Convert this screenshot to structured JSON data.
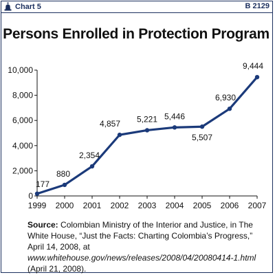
{
  "header": {
    "label": "Chart 5",
    "code": "B 2129",
    "icon": "liberty-bell-icon"
  },
  "chart_data": {
    "type": "line",
    "title": "Persons Enrolled in Protection Program",
    "xlabel": "",
    "ylabel": "",
    "categories": [
      "1999",
      "2000",
      "2001",
      "2002",
      "2003",
      "2004",
      "2005",
      "2006",
      "2007"
    ],
    "values": [
      177,
      880,
      2354,
      4857,
      5221,
      5446,
      5507,
      6930,
      9444
    ],
    "data_labels": [
      "177",
      "880",
      "2,354",
      "4,857",
      "5,221",
      "5,446",
      "5,507",
      "6,930",
      "9,444"
    ],
    "ylim": [
      0,
      10000
    ],
    "yticks": [
      0,
      2000,
      4000,
      6000,
      8000,
      10000
    ],
    "ytick_labels": [
      "0",
      "2,000",
      "4,000",
      "6,000",
      "8,000",
      "10,000"
    ],
    "grid": false,
    "line_color": "#1b3a7a"
  },
  "source": {
    "label": "Source:",
    "part1": " Colombian Ministry of the Interior and Justice, in The White House, “Just the Facts: Charting Colombia’s Progress,” April 14, 2008, at ",
    "url": "www.whitehouse.gov/news/releases/2008/04/20080414-1.html",
    "part2": " (April 21, 2008)."
  }
}
